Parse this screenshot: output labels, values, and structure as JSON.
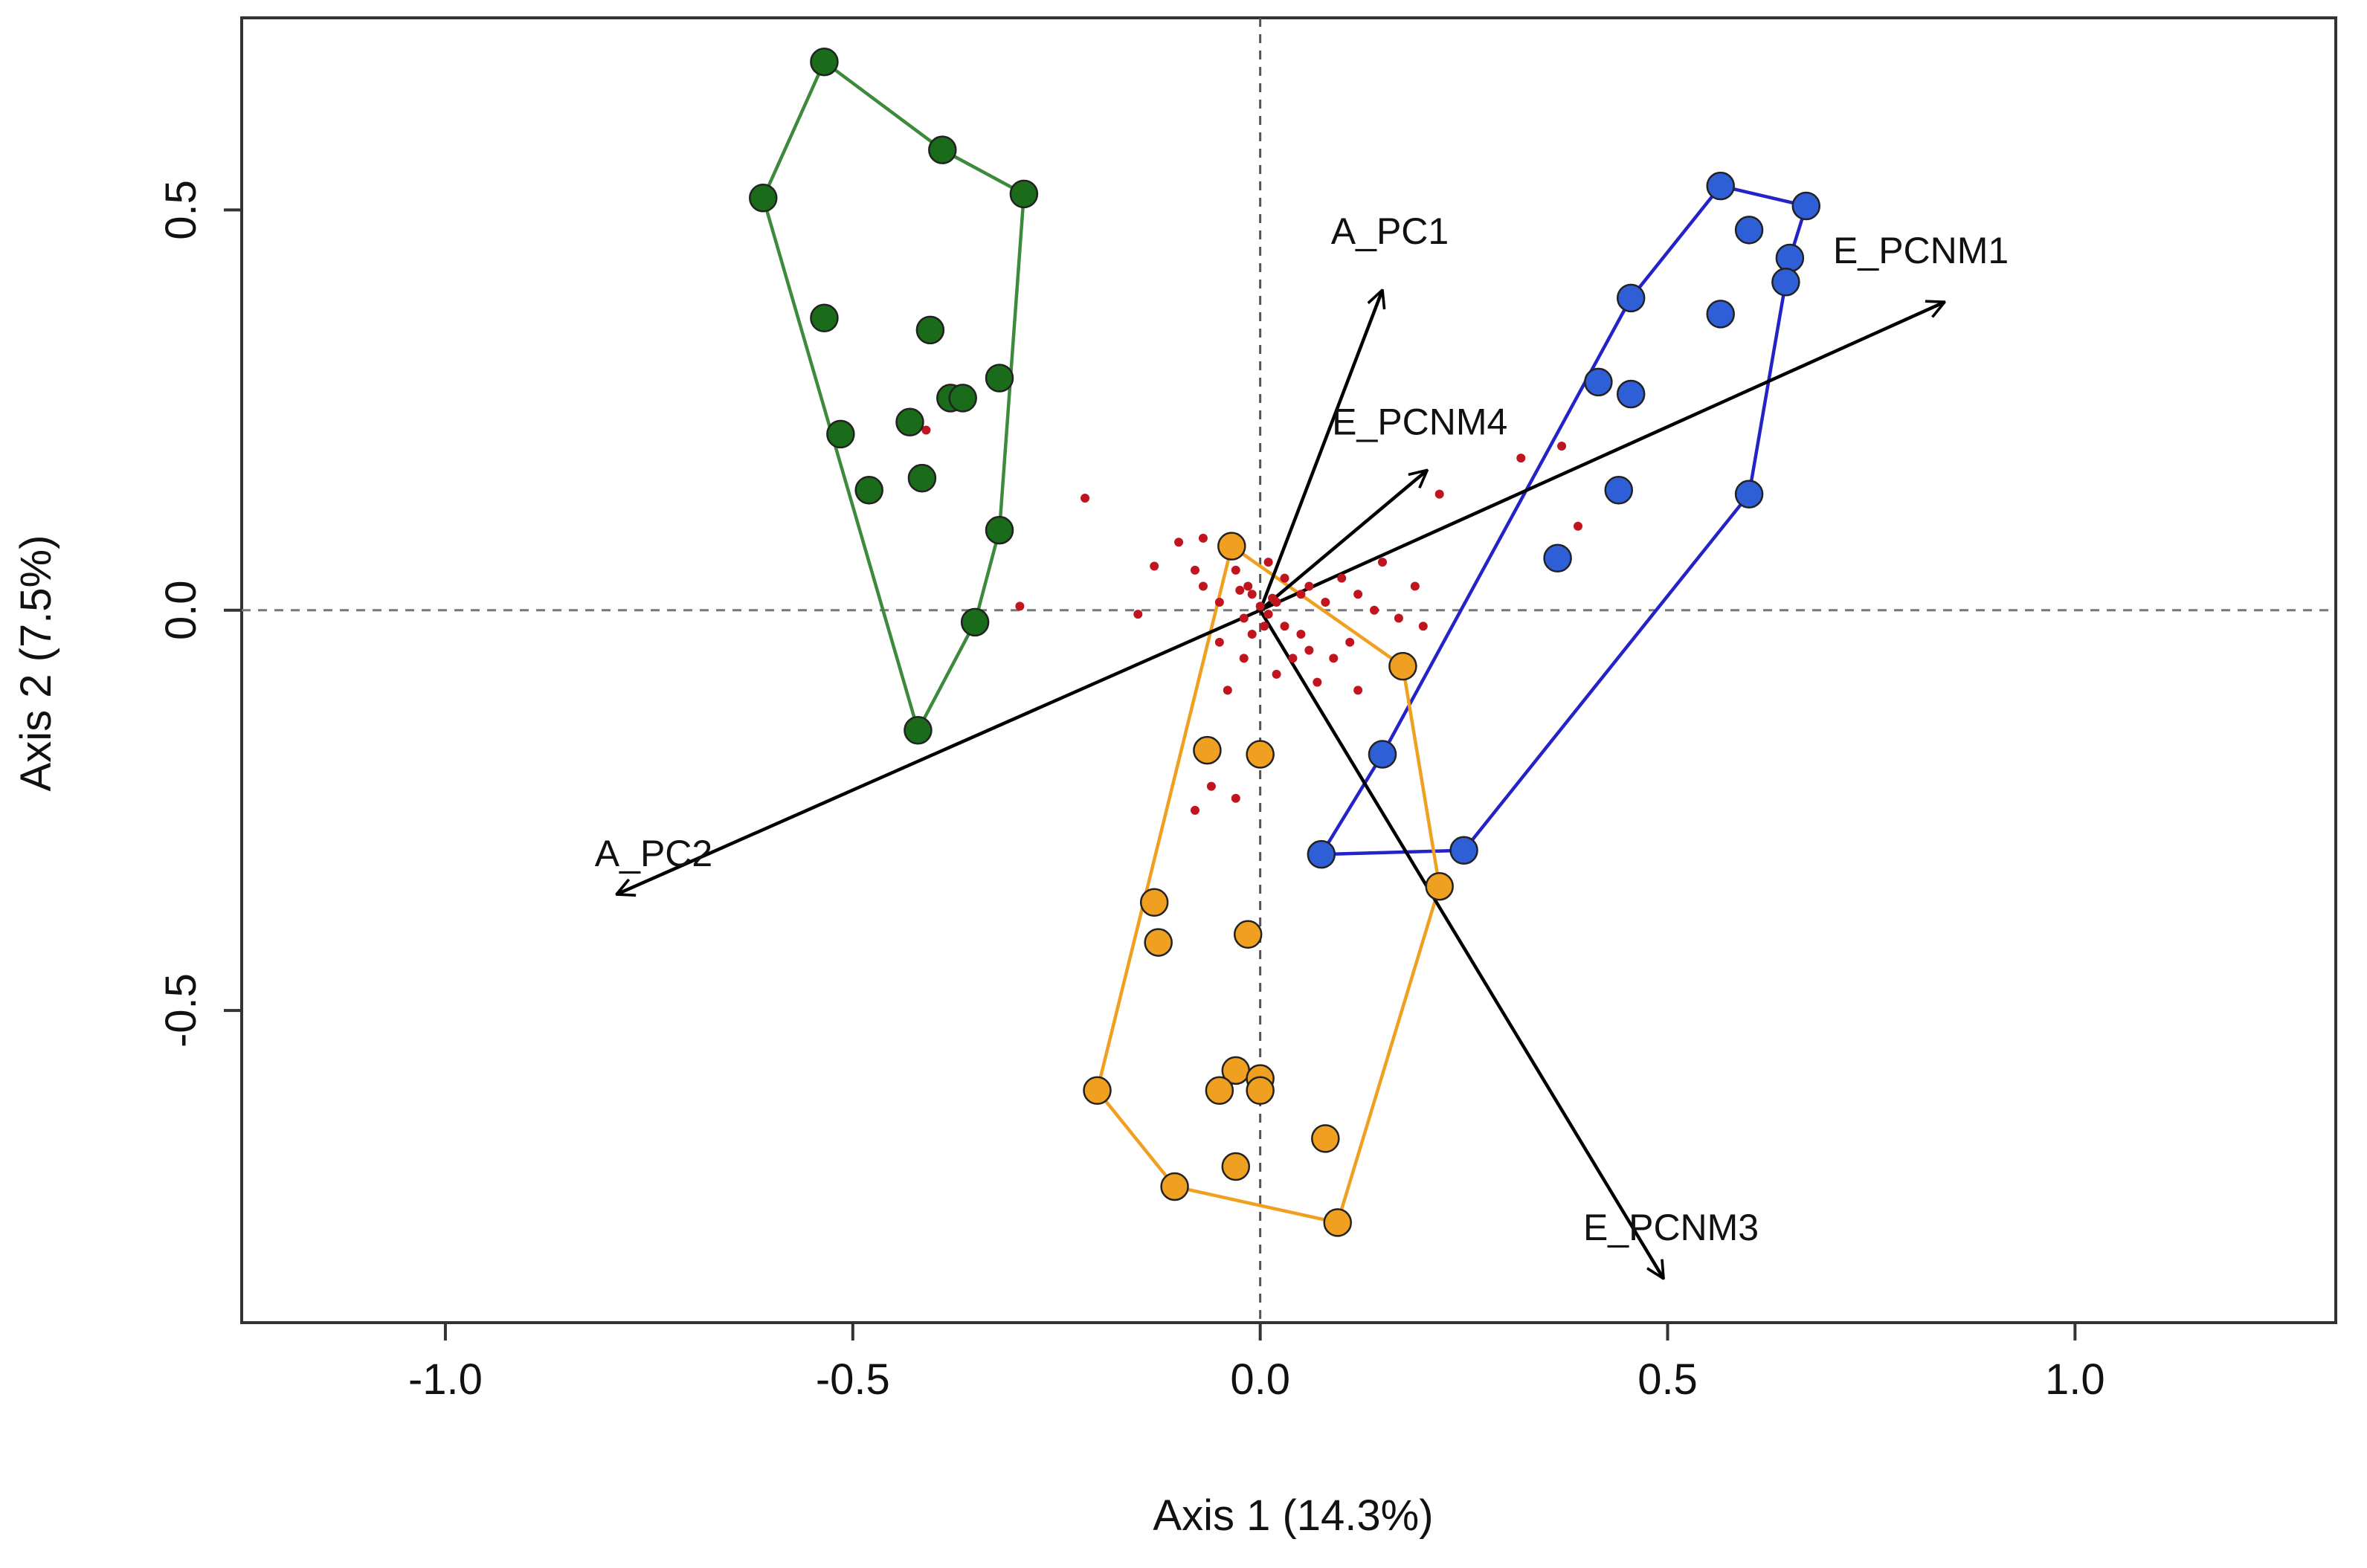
{
  "chart_data": {
    "type": "scatter",
    "title": "",
    "xlabel": "Axis 1 (14.3%)",
    "ylabel": "Axis 2 (7.5%)",
    "xlim": [
      -1.25,
      1.32
    ],
    "ylim": [
      -0.89,
      0.74
    ],
    "xticks": [
      -1.0,
      -0.5,
      0.0,
      0.5,
      1.0
    ],
    "xtick_labels": [
      "-1.0",
      "-0.5",
      "0.0",
      "0.5",
      "1.0"
    ],
    "yticks": [
      -0.5,
      0.0,
      0.5
    ],
    "ytick_labels": [
      "-0.5",
      "0.0",
      "0.5"
    ],
    "reference_lines": {
      "x": 0,
      "y": 0
    },
    "groups": [
      {
        "name": "green",
        "color": "#1a6b1a",
        "hull_color": "#3d8a3d",
        "points": [
          [
            -0.535,
            0.685
          ],
          [
            -0.39,
            0.575
          ],
          [
            -0.29,
            0.52
          ],
          [
            -0.61,
            0.515
          ],
          [
            -0.535,
            0.365
          ],
          [
            -0.405,
            0.35
          ],
          [
            -0.32,
            0.29
          ],
          [
            -0.38,
            0.265
          ],
          [
            -0.365,
            0.265
          ],
          [
            -0.43,
            0.235
          ],
          [
            -0.515,
            0.22
          ],
          [
            -0.48,
            0.15
          ],
          [
            -0.415,
            0.165
          ],
          [
            -0.32,
            0.1
          ],
          [
            -0.35,
            -0.015
          ],
          [
            -0.42,
            -0.15
          ]
        ],
        "hull": [
          [
            -0.535,
            0.685
          ],
          [
            -0.39,
            0.575
          ],
          [
            -0.29,
            0.52
          ],
          [
            -0.32,
            0.1
          ],
          [
            -0.35,
            -0.015
          ],
          [
            -0.42,
            -0.15
          ],
          [
            -0.61,
            0.515
          ]
        ]
      },
      {
        "name": "blue",
        "color": "#2e5fd6",
        "hull_color": "#2323c8",
        "points": [
          [
            0.565,
            0.53
          ],
          [
            0.67,
            0.505
          ],
          [
            0.6,
            0.475
          ],
          [
            0.65,
            0.44
          ],
          [
            0.645,
            0.41
          ],
          [
            0.455,
            0.39
          ],
          [
            0.565,
            0.37
          ],
          [
            0.415,
            0.285
          ],
          [
            0.455,
            0.27
          ],
          [
            0.44,
            0.15
          ],
          [
            0.6,
            0.145
          ],
          [
            0.365,
            0.065
          ],
          [
            0.15,
            -0.18
          ],
          [
            0.25,
            -0.3
          ],
          [
            0.075,
            -0.305
          ]
        ],
        "hull": [
          [
            0.565,
            0.53
          ],
          [
            0.67,
            0.505
          ],
          [
            0.65,
            0.44
          ],
          [
            0.6,
            0.145
          ],
          [
            0.25,
            -0.3
          ],
          [
            0.075,
            -0.305
          ],
          [
            0.15,
            -0.18
          ],
          [
            0.455,
            0.39
          ]
        ]
      },
      {
        "name": "orange",
        "color": "#f0a020",
        "hull_color": "#f0a020",
        "points": [
          [
            -0.035,
            0.08
          ],
          [
            0.175,
            -0.07
          ],
          [
            -0.065,
            -0.175
          ],
          [
            0,
            -0.18
          ],
          [
            0.22,
            -0.345
          ],
          [
            -0.13,
            -0.365
          ],
          [
            -0.125,
            -0.415
          ],
          [
            -0.015,
            -0.405
          ],
          [
            -0.2,
            -0.6
          ],
          [
            -0.03,
            -0.575
          ],
          [
            -0.05,
            -0.6
          ],
          [
            0,
            -0.585
          ],
          [
            0,
            -0.6
          ],
          [
            0.08,
            -0.66
          ],
          [
            -0.105,
            -0.72
          ],
          [
            -0.03,
            -0.695
          ],
          [
            0.095,
            -0.765
          ]
        ],
        "hull": [
          [
            -0.035,
            0.08
          ],
          [
            0.175,
            -0.07
          ],
          [
            0.22,
            -0.345
          ],
          [
            0.095,
            -0.765
          ],
          [
            -0.105,
            -0.72
          ],
          [
            -0.2,
            -0.6
          ]
        ]
      }
    ],
    "small_points": {
      "name": "red",
      "color": "#c0141e",
      "points": [
        [
          -0.41,
          0.225
        ],
        [
          -0.215,
          0.14
        ],
        [
          0.32,
          0.19
        ],
        [
          0.37,
          0.205
        ],
        [
          0.39,
          0.105
        ],
        [
          0.22,
          0.145
        ],
        [
          -0.295,
          0.005
        ],
        [
          -0.15,
          -0.005
        ],
        [
          -0.1,
          0.085
        ],
        [
          -0.13,
          0.055
        ],
        [
          -0.07,
          0.03
        ],
        [
          -0.07,
          0.09
        ],
        [
          -0.025,
          0.025
        ],
        [
          -0.05,
          0.01
        ],
        [
          -0.02,
          -0.01
        ],
        [
          -0.01,
          0.02
        ],
        [
          0,
          0.005
        ],
        [
          0.01,
          -0.005
        ],
        [
          0.02,
          0.01
        ],
        [
          0.03,
          -0.02
        ],
        [
          0.05,
          0.02
        ],
        [
          0.06,
          0.03
        ],
        [
          0.08,
          0.01
        ],
        [
          0.1,
          0.04
        ],
        [
          0.12,
          0.02
        ],
        [
          0.15,
          0.06
        ],
        [
          0.14,
          0
        ],
        [
          0.17,
          -0.01
        ],
        [
          0.2,
          -0.02
        ],
        [
          0.19,
          0.03
        ],
        [
          0.06,
          -0.05
        ],
        [
          0.09,
          -0.06
        ],
        [
          0.11,
          -0.04
        ],
        [
          -0.02,
          -0.06
        ],
        [
          -0.04,
          -0.1
        ],
        [
          -0.06,
          -0.22
        ],
        [
          -0.03,
          -0.235
        ],
        [
          -0.08,
          -0.25
        ],
        [
          0.02,
          -0.08
        ],
        [
          0.05,
          -0.03
        ],
        [
          -0.01,
          -0.03
        ],
        [
          0.03,
          0.04
        ],
        [
          0.01,
          0.06
        ],
        [
          -0.03,
          0.05
        ],
        [
          -0.08,
          0.05
        ],
        [
          0.04,
          -0.06
        ],
        [
          0.07,
          -0.09
        ],
        [
          0.12,
          -0.1
        ],
        [
          -0.05,
          -0.04
        ],
        [
          0.005,
          -0.02
        ],
        [
          0.015,
          0.015
        ],
        [
          -0.015,
          0.03
        ]
      ]
    },
    "vectors": [
      {
        "name": "A_PC1",
        "x": 0.15,
        "y": 0.4
      },
      {
        "name": "E_PCNM1",
        "x": 0.84,
        "y": 0.385
      },
      {
        "name": "E_PCNM4",
        "x": 0.205,
        "y": 0.175
      },
      {
        "name": "A_PC2",
        "x": -0.79,
        "y": -0.355
      },
      {
        "name": "E_PCNM3",
        "x": 0.495,
        "y": -0.835
      }
    ]
  }
}
